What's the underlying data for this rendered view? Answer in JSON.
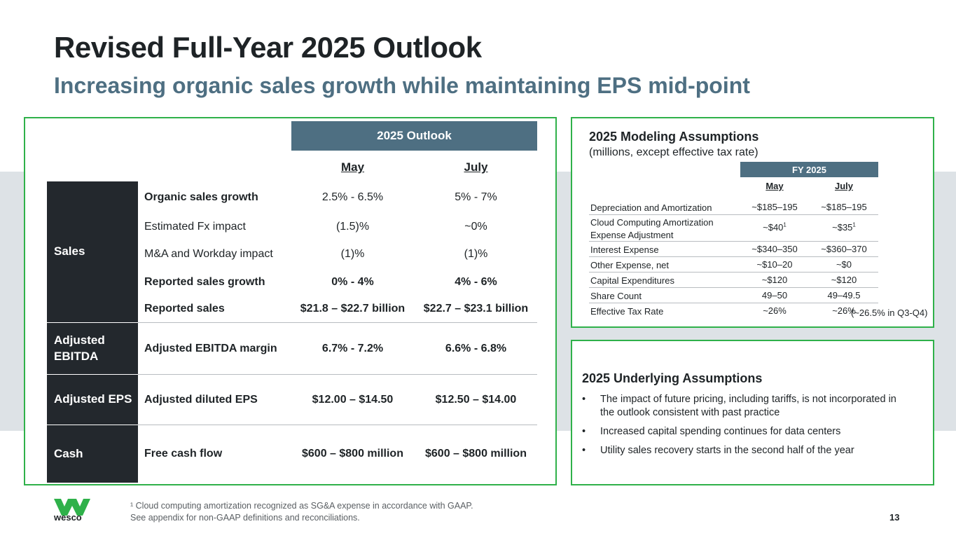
{
  "header": {
    "title": "Revised Full-Year 2025 Outlook",
    "subtitle": "Increasing organic sales growth while maintaining EPS mid-point"
  },
  "outlook": {
    "header": "2025  Outlook",
    "col_may": "May",
    "col_july": "July",
    "categories": {
      "sales": "Sales",
      "ebitda": "Adjusted EBITDA",
      "eps": "Adjusted EPS",
      "cash": "Cash"
    },
    "rows": [
      {
        "metric": "Organic sales growth",
        "may": "2.5% - 6.5%",
        "july": "5% - 7%"
      },
      {
        "metric": "Estimated Fx impact",
        "may": "(1.5)%",
        "july": "~0%"
      },
      {
        "metric": "M&A and Workday impact",
        "may": "(1)%",
        "july": "(1)%"
      },
      {
        "metric": "Reported sales growth",
        "may": "0% - 4%",
        "july": "4% - 6%"
      },
      {
        "metric": "Reported sales",
        "may": "$21.8 – $22.7 billion",
        "july": "$22.7 – $23.1 billion"
      },
      {
        "metric": "Adjusted EBITDA margin",
        "may": "6.7% - 7.2%",
        "july": "6.6% - 6.8%"
      },
      {
        "metric": "Adjusted diluted EPS",
        "may": "$12.00 – $14.50",
        "july": "$12.50 – $14.00"
      },
      {
        "metric": "Free cash flow",
        "may": "$600 – $800 million",
        "july": "$600 – $800 million"
      }
    ]
  },
  "modeling": {
    "title": "2025 Modeling Assumptions",
    "subtitle": "(millions, except effective tax rate)",
    "fy_header": "FY 2025",
    "col_may": "May",
    "col_july": "July",
    "rows": [
      {
        "label": "Depreciation and Amortization",
        "may": "~$185–195",
        "july": "~$185–195"
      },
      {
        "label": "Cloud Computing Amortization Expense Adjustment",
        "may": "~$40",
        "july": "~$35",
        "sup": "1"
      },
      {
        "label": "Interest Expense",
        "may": "~$340–350",
        "july": "~$360–370"
      },
      {
        "label": "Other Expense, net",
        "may": "~$10–20",
        "july": "~$0"
      },
      {
        "label": "Capital Expenditures",
        "may": "~$120",
        "july": "~$120"
      },
      {
        "label": "Share Count",
        "may": "49–50",
        "july": "49–49.5"
      },
      {
        "label": "Effective Tax Rate",
        "may": "~26%",
        "july": "~26%"
      }
    ],
    "tax_note": "(~26.5% in Q3-Q4)"
  },
  "underlying": {
    "title": "2025 Underlying Assumptions",
    "bullets": [
      "The impact of future pricing, including tariffs, is not incorporated in the outlook consistent with past practice",
      "Increased capital spending continues for data centers",
      "Utility sales recovery starts in the second half of the year"
    ]
  },
  "footer": {
    "logo_text": "wesco",
    "footnote1": "¹ Cloud computing amortization recognized as SG&A expense in accordance with GAAP.",
    "footnote2": "See appendix for non-GAAP definitions and reconciliations.",
    "page_number": "13"
  },
  "colors": {
    "accent_green": "#2fb14a",
    "header_slate": "#4e6f82",
    "category_dark": "#23282d",
    "logo_green": "#2fb14a"
  }
}
